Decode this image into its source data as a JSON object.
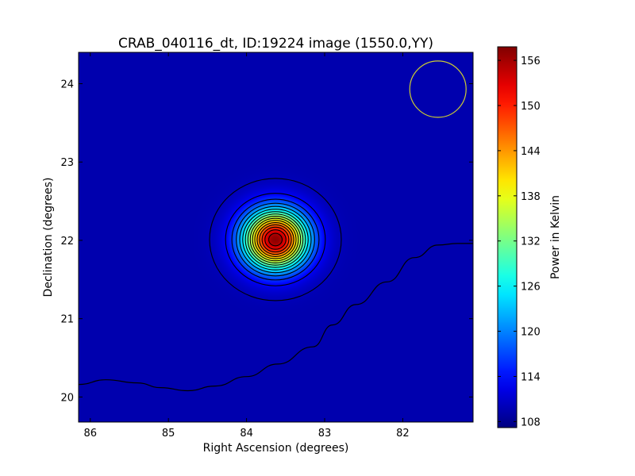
{
  "chart_data": {
    "type": "heatmap",
    "title": "CRAB_040116_dt, ID:19224 image (1550.0,YY)",
    "xlabel": "Right Ascension (degrees)",
    "ylabel": "Declination (degrees)",
    "colorbar_label": "Power in Kelvin",
    "colormap": "jet",
    "xlim": [
      86.15,
      81.1
    ],
    "ylim": [
      19.68,
      24.4
    ],
    "x_inverted": true,
    "x_ticks": [
      86,
      85,
      84,
      83,
      82
    ],
    "y_ticks": [
      20,
      21,
      22,
      23,
      24
    ],
    "colorbar_range": [
      107.2,
      157.8
    ],
    "colorbar_ticks": [
      108,
      114,
      120,
      126,
      132,
      138,
      144,
      150,
      156
    ],
    "background_level": 109.5,
    "source": {
      "ra": 83.63,
      "dec": 22.01,
      "peak": 157.2,
      "contour_levels": [
        110,
        113,
        116,
        119,
        122,
        125,
        128,
        131,
        134,
        137,
        140,
        143,
        146,
        149,
        152,
        155
      ]
    },
    "low_contour": {
      "level": 108.2,
      "points": [
        [
          86.15,
          20.16
        ],
        [
          85.8,
          20.22
        ],
        [
          85.4,
          20.18
        ],
        [
          85.1,
          20.12
        ],
        [
          84.75,
          20.08
        ],
        [
          84.4,
          20.14
        ],
        [
          84.0,
          20.26
        ],
        [
          83.6,
          20.42
        ],
        [
          83.15,
          20.64
        ],
        [
          82.9,
          20.92
        ],
        [
          82.6,
          21.18
        ],
        [
          82.2,
          21.47
        ],
        [
          81.85,
          21.78
        ],
        [
          81.55,
          21.94
        ],
        [
          81.3,
          21.96
        ],
        [
          81.1,
          21.96
        ]
      ]
    },
    "beam": {
      "ra": 81.55,
      "dec": 23.93,
      "radius_deg": 0.36,
      "color": "#cccc33"
    }
  }
}
